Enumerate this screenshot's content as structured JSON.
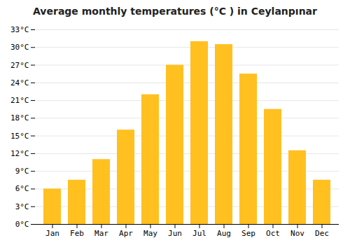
{
  "chart_data": {
    "type": "bar",
    "title": "Average monthly temperatures (°C ) in Ceylanpınar",
    "categories": [
      "Jan",
      "Feb",
      "Mar",
      "Apr",
      "May",
      "Jun",
      "Jul",
      "Aug",
      "Sep",
      "Oct",
      "Nov",
      "Dec"
    ],
    "values": [
      6,
      7.5,
      11,
      16,
      22,
      27,
      31,
      30.5,
      25.5,
      19.5,
      12.5,
      7.5
    ],
    "color": "#FFC020",
    "ylim": [
      0,
      33
    ],
    "yticks": [
      {
        "value": 0,
        "label": "0°C"
      },
      {
        "value": 3,
        "label": "3°C"
      },
      {
        "value": 6,
        "label": "6°C"
      },
      {
        "value": 9,
        "label": "9°C"
      },
      {
        "value": 12,
        "label": "12°C"
      },
      {
        "value": 15,
        "label": "15°C"
      },
      {
        "value": 18,
        "label": "18°C"
      },
      {
        "value": 21,
        "label": "21°C"
      },
      {
        "value": 24,
        "label": "24°C"
      },
      {
        "value": 27,
        "label": "27°C"
      },
      {
        "value": 30,
        "label": "30°C"
      },
      {
        "value": 33,
        "label": "33°C"
      }
    ],
    "grid": true
  }
}
